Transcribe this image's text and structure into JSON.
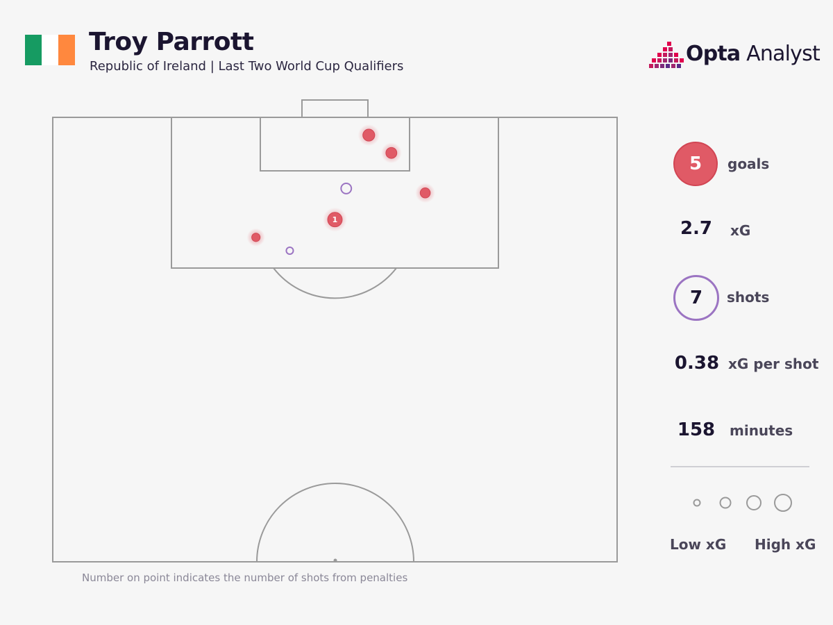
{
  "header": {
    "title": "Troy Parrott",
    "subtitle": "Republic of Ireland | Last Two World Cup Qualifiers"
  },
  "flag": {
    "name": "Ireland flag",
    "colors": [
      "#169b62",
      "#ffffff",
      "#ff883e"
    ]
  },
  "brand": {
    "name_bold": "Opta",
    "name_light": "Analyst",
    "colors": [
      "#e0004d",
      "#a0266f",
      "#5b2a86"
    ]
  },
  "footnote": "Number on point indicates the number of shots from penalties",
  "stats": {
    "goals": {
      "value": "5",
      "label": "goals"
    },
    "xg": {
      "value": "2.7",
      "label": "xG"
    },
    "shots": {
      "value": "7",
      "label": "shots"
    },
    "xg_per_shot": {
      "value": "0.38",
      "label": "xG per shot"
    },
    "minutes": {
      "value": "158",
      "label": "minutes"
    }
  },
  "legend": {
    "low_label": "Low xG",
    "high_label": "High xG"
  },
  "colors": {
    "goal": "#e05a66",
    "miss": "#9b74c2",
    "pitch_line": "#9a9a9a",
    "background": "#f6f6f6"
  },
  "chart_data": {
    "type": "scatter",
    "pitch": "half-pitch shot map, attacking upward",
    "shots": [
      {
        "outcome": "goal",
        "xg": 0.4,
        "penalty_shots": 0,
        "pitch_x": 0.56,
        "pitch_y": 0.96
      },
      {
        "outcome": "goal",
        "xg": 0.3,
        "penalty_shots": 0,
        "pitch_x": 0.6,
        "pitch_y": 0.92
      },
      {
        "outcome": "goal",
        "xg": 0.22,
        "penalty_shots": 0,
        "pitch_x": 0.66,
        "pitch_y": 0.83
      },
      {
        "outcome": "goal",
        "xg": 0.76,
        "penalty_shots": 1,
        "pitch_x": 0.5,
        "pitch_y": 0.77
      },
      {
        "outcome": "goal",
        "xg": 0.1,
        "penalty_shots": 0,
        "pitch_x": 0.36,
        "pitch_y": 0.73
      },
      {
        "outcome": "shot",
        "xg": 0.38,
        "penalty_shots": 0,
        "pitch_x": 0.52,
        "pitch_y": 0.84
      },
      {
        "outcome": "shot",
        "xg": 0.1,
        "penalty_shots": 0,
        "pitch_x": 0.42,
        "pitch_y": 0.7
      }
    ],
    "legend_sizes_xg": [
      0.05,
      0.2,
      0.45,
      0.75
    ]
  }
}
